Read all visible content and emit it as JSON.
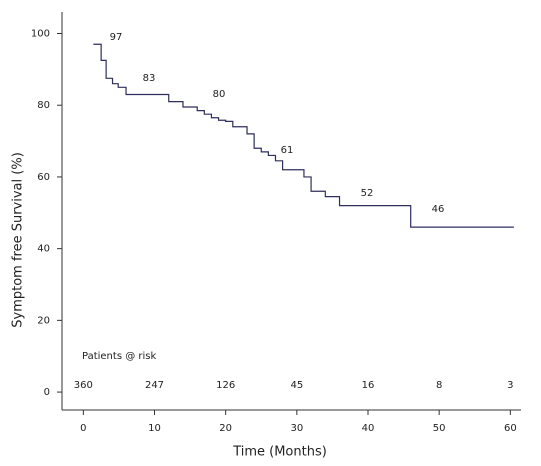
{
  "chart_data": {
    "type": "line",
    "step": "post",
    "x_label": "Time (Months)",
    "y_label": "Symptom free Survival (%)",
    "xlim": [
      -3,
      61.5
    ],
    "ylim": [
      -5,
      106
    ],
    "xticks": [
      0,
      10,
      20,
      30,
      40,
      50,
      60
    ],
    "yticks": [
      0,
      20,
      40,
      60,
      80,
      100
    ],
    "series": [
      {
        "name": "Survival",
        "color": "#2e2e5c",
        "x": [
          1.4,
          2.5,
          3.2,
          4.1,
          4.9,
          6,
          11.2,
          12,
          14,
          16,
          17,
          18,
          19,
          20,
          21,
          23,
          24,
          25,
          26,
          27,
          28,
          31,
          32,
          34,
          36,
          46,
          60.5
        ],
        "values": [
          97,
          92.5,
          87.5,
          86,
          85,
          83,
          83,
          81,
          79.5,
          78.5,
          77.5,
          76.5,
          75.8,
          75.5,
          74,
          72,
          68,
          67,
          66,
          64.5,
          62,
          60,
          56,
          54.5,
          52,
          46,
          46
        ]
      }
    ],
    "annotations": [
      "97",
      "83",
      "80",
      "61",
      "52",
      "46"
    ],
    "at_risk": {
      "label": "Patients @ risk",
      "values": [
        360,
        247,
        126,
        45,
        16,
        8,
        3
      ]
    }
  }
}
